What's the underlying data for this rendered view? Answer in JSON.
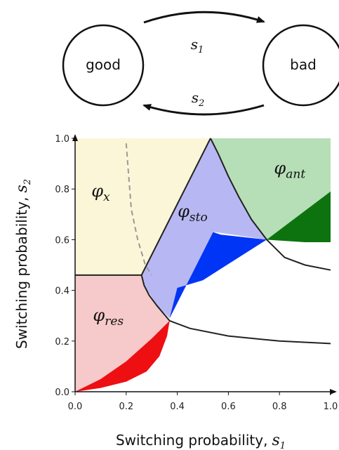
{
  "state_diagram": {
    "states": [
      {
        "label": "good"
      },
      {
        "label": "bad"
      }
    ],
    "transitions": [
      {
        "from": "good",
        "to": "bad",
        "symbol": "s",
        "subscript": "1"
      },
      {
        "from": "bad",
        "to": "good",
        "symbol": "s",
        "subscript": "2"
      }
    ]
  },
  "chart_data": {
    "type": "area",
    "xlabel": "Switching probability,",
    "xlabel_symbol": "s",
    "xlabel_subscript": "1",
    "ylabel": "Switching probability,",
    "ylabel_symbol": "s",
    "ylabel_subscript": "2",
    "xlim": [
      0,
      1
    ],
    "ylim": [
      0,
      1
    ],
    "x_ticks": [
      "0.0",
      "0.2",
      "0.4",
      "0.6",
      "0.8",
      "1.0"
    ],
    "y_ticks": [
      "0.0",
      "0.2",
      "0.4",
      "0.6",
      "0.8",
      "1.0"
    ],
    "regions": [
      {
        "name": "φ",
        "subscript": "x",
        "color": "#fbf6d7",
        "points": [
          [
            0,
            0.46
          ],
          [
            0.26,
            0.46
          ],
          [
            0.53,
            1.0
          ],
          [
            0,
            1.0
          ]
        ]
      },
      {
        "name": "φ",
        "subscript": "res",
        "color": "#f6c9ca",
        "points": [
          [
            0,
            0
          ],
          [
            0,
            0.46
          ],
          [
            0.26,
            0.46
          ],
          [
            0.27,
            0.42
          ],
          [
            0.29,
            0.38
          ],
          [
            0.32,
            0.34
          ],
          [
            0.36,
            0.29
          ],
          [
            0.37,
            0.28
          ],
          [
            0.36,
            0.22
          ],
          [
            0.33,
            0.14
          ],
          [
            0.28,
            0.08
          ],
          [
            0.2,
            0.04
          ],
          [
            0.1,
            0.015
          ]
        ]
      },
      {
        "name": "φ",
        "subscript": "sto",
        "color": "#b7b8f3",
        "points": [
          [
            0.26,
            0.46
          ],
          [
            0.53,
            1.0
          ],
          [
            0.56,
            0.94
          ],
          [
            0.6,
            0.85
          ],
          [
            0.64,
            0.77
          ],
          [
            0.69,
            0.68
          ],
          [
            0.75,
            0.6
          ],
          [
            0.55,
            0.63
          ],
          [
            0.54,
            0.63
          ],
          [
            0.37,
            0.29
          ],
          [
            0.32,
            0.34
          ],
          [
            0.27,
            0.42
          ]
        ]
      },
      {
        "name": "φ",
        "subscript": "ant",
        "color": "#b6dfb7",
        "points": [
          [
            0.53,
            1.0
          ],
          [
            1.0,
            1.0
          ],
          [
            1.0,
            0.59
          ],
          [
            0.9,
            0.59
          ],
          [
            0.75,
            0.6
          ],
          [
            0.69,
            0.68
          ],
          [
            0.64,
            0.77
          ],
          [
            0.6,
            0.85
          ],
          [
            0.56,
            0.94
          ]
        ]
      }
    ],
    "dark_regions": [
      {
        "color": "#ee0f12",
        "points": [
          [
            0,
            0
          ],
          [
            0.1,
            0.015
          ],
          [
            0.2,
            0.04
          ],
          [
            0.28,
            0.08
          ],
          [
            0.33,
            0.14
          ],
          [
            0.36,
            0.22
          ],
          [
            0.37,
            0.28
          ],
          [
            0.3,
            0.21
          ],
          [
            0.2,
            0.12
          ],
          [
            0.1,
            0.05
          ]
        ]
      },
      {
        "color": "#0035f5",
        "points": [
          [
            0.37,
            0.29
          ],
          [
            0.54,
            0.63
          ],
          [
            0.57,
            0.62
          ],
          [
            0.75,
            0.6
          ],
          [
            0.5,
            0.44
          ],
          [
            0.4,
            0.41
          ]
        ]
      },
      {
        "color": "#0d730f",
        "points": [
          [
            0.75,
            0.6
          ],
          [
            1.0,
            0.79
          ],
          [
            1.0,
            0.59
          ],
          [
            0.9,
            0.59
          ]
        ]
      }
    ],
    "boundaries": [
      {
        "style": "solid",
        "points": [
          [
            0,
            0.46
          ],
          [
            0.26,
            0.46
          ]
        ]
      },
      {
        "style": "solid",
        "points": [
          [
            0.26,
            0.46
          ],
          [
            0.53,
            1.0
          ]
        ]
      },
      {
        "style": "solid",
        "points": [
          [
            0.53,
            1.0
          ],
          [
            0.56,
            0.94
          ],
          [
            0.6,
            0.85
          ],
          [
            0.64,
            0.77
          ],
          [
            0.69,
            0.68
          ],
          [
            0.75,
            0.6
          ],
          [
            0.82,
            0.53
          ],
          [
            0.9,
            0.5
          ],
          [
            1.0,
            0.48
          ]
        ]
      },
      {
        "style": "solid",
        "points": [
          [
            0.26,
            0.46
          ],
          [
            0.27,
            0.42
          ],
          [
            0.29,
            0.38
          ],
          [
            0.32,
            0.34
          ],
          [
            0.37,
            0.28
          ],
          [
            0.45,
            0.25
          ],
          [
            0.6,
            0.22
          ],
          [
            0.8,
            0.2
          ],
          [
            1.0,
            0.19
          ]
        ]
      },
      {
        "style": "dashed",
        "points": [
          [
            0.2,
            0.98
          ],
          [
            0.21,
            0.85
          ],
          [
            0.22,
            0.72
          ],
          [
            0.245,
            0.6
          ],
          [
            0.275,
            0.5
          ],
          [
            0.3,
            0.46
          ]
        ]
      }
    ],
    "labels": [
      {
        "name": "φ",
        "subscript": "x",
        "at": [
          0.1,
          0.77
        ]
      },
      {
        "name": "φ",
        "subscript": "sto",
        "at": [
          0.46,
          0.69
        ]
      },
      {
        "name": "φ",
        "subscript": "ant",
        "at": [
          0.84,
          0.86
        ]
      },
      {
        "name": "φ",
        "subscript": "res",
        "at": [
          0.13,
          0.28
        ]
      }
    ]
  }
}
